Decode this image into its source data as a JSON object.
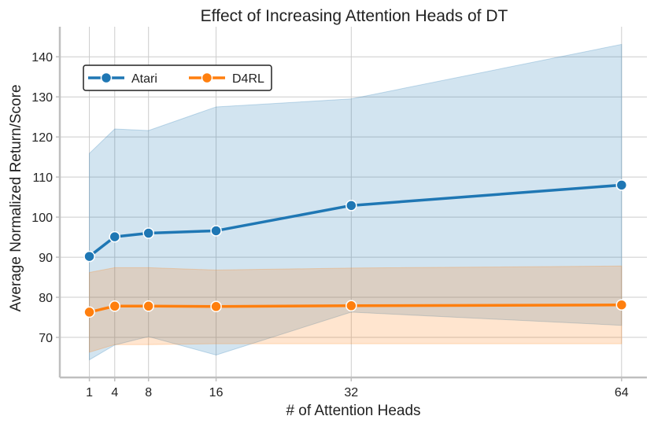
{
  "chart_data": {
    "type": "line",
    "title": "Effect of Increasing Attention Heads of DT",
    "xlabel": "# of Attention Heads",
    "ylabel": "Average Normalized Return/Score",
    "x": [
      1,
      4,
      8,
      16,
      32,
      64
    ],
    "xticks": [
      "1",
      "4",
      "8",
      "16",
      "32",
      "64"
    ],
    "yticks": [
      70,
      80,
      90,
      100,
      110,
      120,
      130,
      140
    ],
    "xlim": [
      -2.5,
      67
    ],
    "ylim": [
      60,
      147.5
    ],
    "grid": true,
    "legend_position": "top-left",
    "series": [
      {
        "name": "Atari",
        "color": "#1f77b4",
        "values": [
          90.2,
          95.1,
          96.0,
          96.6,
          102.9,
          108.0
        ],
        "band_lower": [
          64.4,
          68.1,
          70.2,
          65.6,
          76.3,
          73.0
        ],
        "band_upper": [
          115.9,
          122.0,
          121.6,
          127.5,
          129.5,
          143.1
        ]
      },
      {
        "name": "D4RL",
        "color": "#ff7f0e",
        "values": [
          76.3,
          77.8,
          77.8,
          77.7,
          77.9,
          78.1
        ],
        "band_lower": [
          66.3,
          68.2,
          68.2,
          68.4,
          68.4,
          68.4
        ],
        "band_upper": [
          86.2,
          87.4,
          87.4,
          86.8,
          87.3,
          87.8
        ]
      }
    ]
  }
}
